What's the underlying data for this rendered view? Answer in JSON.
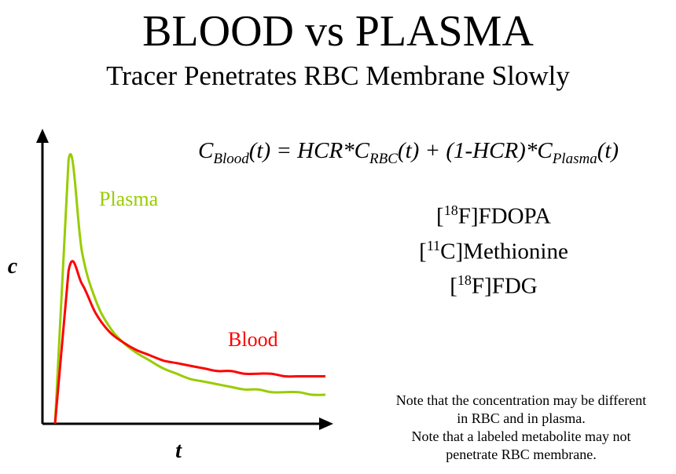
{
  "title": "BLOOD vs PLASMA",
  "subtitle": "Tracer Penetrates RBC Membrane Slowly",
  "formula": {
    "c1": "C",
    "s1": "Blood",
    "t1": "(t) = HCR*C",
    "s2": "RBC",
    "t2": "(t) + (1-HCR)*C",
    "s3": "Plasma",
    "t3": "(t)"
  },
  "tracers": [
    {
      "pre": "[",
      "sup": "18",
      "post": "F]FDOPA"
    },
    {
      "pre": "[",
      "sup": "11",
      "post": "C]Methionine"
    },
    {
      "pre": "[",
      "sup": "18",
      "post": "F]FDG"
    }
  ],
  "note": {
    "line1": "Note that the concentration may be different",
    "line2": "in RBC and in plasma.",
    "line3": "Note that a labeled metabolite may not",
    "line4": "penetrate RBC membrane."
  },
  "chart_data": {
    "type": "line",
    "xlabel": "t",
    "ylabel": "c",
    "series": [
      {
        "name": "Plasma",
        "color": "#99cc00",
        "x": [
          0,
          3,
          6,
          9,
          12,
          15,
          18,
          21,
          24,
          27,
          30,
          33,
          36,
          39,
          42,
          45,
          48,
          51,
          54,
          57,
          60
        ],
        "y": [
          0,
          100,
          65,
          47,
          37,
          31,
          27,
          24,
          21,
          19,
          17,
          16,
          15,
          14,
          13,
          13,
          12,
          12,
          12,
          11,
          11
        ]
      },
      {
        "name": "Blood",
        "color": "#ff0000",
        "x": [
          0,
          3,
          6,
          9,
          12,
          15,
          18,
          21,
          24,
          27,
          30,
          33,
          36,
          39,
          42,
          45,
          48,
          51,
          54,
          57,
          60
        ],
        "y": [
          0,
          58,
          53,
          42,
          35,
          31,
          28,
          26,
          24,
          23,
          22,
          21,
          20,
          20,
          19,
          19,
          19,
          18,
          18,
          18,
          18
        ]
      }
    ]
  }
}
